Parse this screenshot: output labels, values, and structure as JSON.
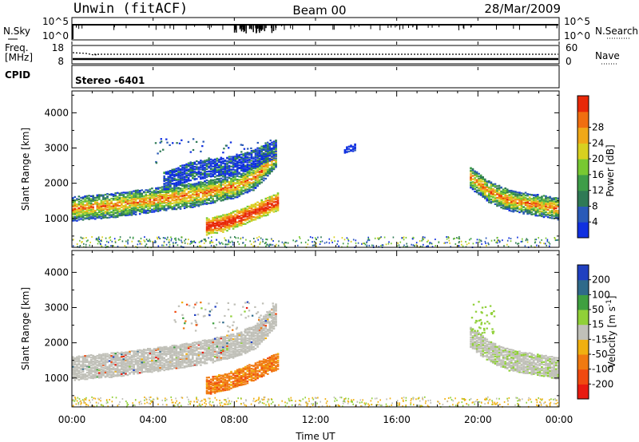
{
  "header": {
    "station": "Unwin (fitACF)",
    "beam": "Beam 00",
    "date": "28/Mar/2009"
  },
  "strip1": {
    "left_label": "N.Sky",
    "left_ticks": [
      "10^5",
      "10^0"
    ],
    "right_label": "N.Search",
    "right_ticks": [
      "10^5",
      "10^0"
    ]
  },
  "strip2": {
    "left_label_line1": "Freq.",
    "left_label_line2": "[MHz]",
    "left_ticks": [
      "18",
      "8"
    ],
    "right_label": "Nave",
    "right_ticks": [
      "60",
      "0"
    ]
  },
  "strip3": {
    "left_label": "CPID",
    "mode_text": "Stereo -6401"
  },
  "panels": {
    "ylabel": "Slant Range [km]",
    "xlabel": "Time UT",
    "yticks": [
      "1000",
      "2000",
      "3000",
      "4000"
    ],
    "xticks": [
      "00:00",
      "04:00",
      "08:00",
      "12:00",
      "16:00",
      "20:00",
      "00:00"
    ]
  },
  "colors": {
    "power": [
      "#1030e0",
      "#2a5ab8",
      "#2f7a55",
      "#3e9d48",
      "#78c832",
      "#d8d020",
      "#f0a818",
      "#f06e10",
      "#e82808"
    ],
    "velocity": [
      "#e81a10",
      "#f04a10",
      "#f07a10",
      "#f0b010",
      "#c0c0b8",
      "#90d038",
      "#3fa040",
      "#2f6a8a",
      "#2040c0"
    ]
  },
  "chart_data": [
    {
      "type": "heatmap",
      "panel": "power",
      "ylabel": "Slant Range [km]",
      "xlabel": "",
      "xlim": [
        0,
        24
      ],
      "ylim": [
        180,
        4620
      ],
      "colorbar_label": "Power [dB]",
      "colorbar_ticks": [
        "4",
        "8",
        "12",
        "16",
        "20",
        "24",
        "28"
      ],
      "colorbar_range": [
        0,
        32
      ],
      "structures": [
        {
          "name": "band A",
          "t": [
            0,
            2,
            4,
            6,
            8,
            9,
            10
          ],
          "range_km": [
            1300,
            1400,
            1550,
            1700,
            1950,
            2200,
            2800
          ],
          "power_db": 16
        },
        {
          "name": "band A upper",
          "t": [
            4.5,
            6,
            8,
            9,
            10
          ],
          "range_km": [
            2100,
            2400,
            2550,
            2750,
            3000
          ],
          "power_db": 6
        },
        {
          "name": "band B",
          "t": [
            6.6,
            7.5,
            8.5,
            9.5,
            10.1
          ],
          "range_km": [
            800,
            900,
            1100,
            1350,
            1500
          ],
          "power_db": 28
        },
        {
          "name": "patch C",
          "t": [
            13.4,
            13.9
          ],
          "range_km": [
            2950,
            3050
          ],
          "power_db": 6
        },
        {
          "name": "band D",
          "t": [
            19.6,
            20.5,
            21.5,
            22.5,
            24
          ],
          "range_km": [
            2200,
            1800,
            1550,
            1450,
            1300
          ],
          "power_db": 16
        }
      ]
    },
    {
      "type": "heatmap",
      "panel": "velocity",
      "ylabel": "Slant Range [km]",
      "xlabel": "Time UT",
      "xlim": [
        0,
        24
      ],
      "ylim": [
        180,
        4620
      ],
      "colorbar_label": "Velocity [m s^-1]",
      "colorbar_ticks": [
        "-200",
        "-100",
        "-50",
        "-15",
        "15",
        "50",
        "100",
        "200"
      ],
      "colorbar_range": [
        -250,
        250
      ],
      "structures": [
        {
          "name": "band A",
          "t": [
            0,
            2,
            4,
            6,
            8,
            9,
            10
          ],
          "range_km": [
            1300,
            1400,
            1550,
            1700,
            1950,
            2200,
            2800
          ],
          "velocity": 0
        },
        {
          "name": "band B",
          "t": [
            6.6,
            7.5,
            8.5,
            9.5,
            10.1
          ],
          "range_km": [
            800,
            900,
            1100,
            1350,
            1500
          ],
          "velocity": -50
        },
        {
          "name": "band D",
          "t": [
            19.6,
            20.5,
            21.5,
            22.5,
            24
          ],
          "range_km": [
            2200,
            1800,
            1550,
            1450,
            1300
          ],
          "velocity": 5
        }
      ]
    }
  ]
}
